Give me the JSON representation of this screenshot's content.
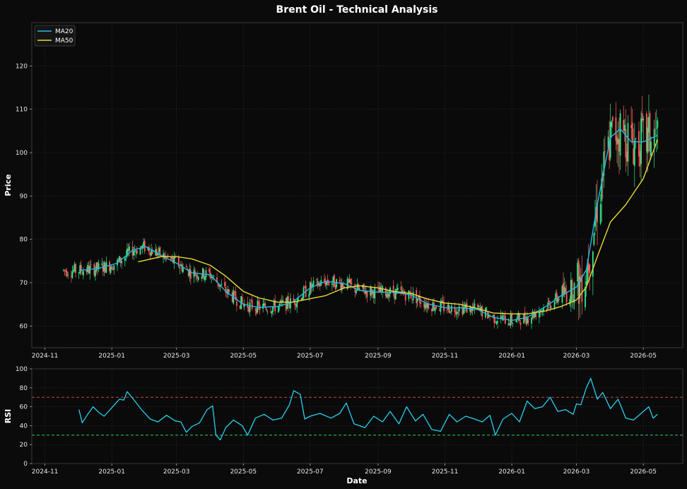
{
  "chart_data": [
    {
      "type": "candlestick",
      "title": "Brent Oil - Technical Analysis",
      "xlabel": "",
      "ylabel": "Price",
      "x_ticks": [
        "2024-11",
        "2025-01",
        "2025-03",
        "2025-05",
        "2025-07",
        "2025-09",
        "2025-11",
        "2026-01",
        "2026-03",
        "2026-05"
      ],
      "y_ticks": [
        60,
        70,
        80,
        90,
        100,
        110,
        120
      ],
      "xlim": [
        "2024-10-20",
        "2026-06-06"
      ],
      "ylim": [
        55,
        130
      ],
      "grid": true,
      "legend_position": "top-left",
      "colors": {
        "up": "#2ee88a",
        "down": "#ff5a5a",
        "ma20": "#29b6e8",
        "ma50": "#e8d83a"
      },
      "series": [
        {
          "name": "MA20",
          "dates": [
            "2024-12-02",
            "2024-12-20",
            "2025-01-06",
            "2025-01-20",
            "2025-02-01",
            "2025-02-15",
            "2025-03-01",
            "2025-03-15",
            "2025-04-01",
            "2025-04-15",
            "2025-05-01",
            "2025-05-15",
            "2025-06-01",
            "2025-06-15",
            "2025-07-01",
            "2025-07-15",
            "2025-08-01",
            "2025-08-15",
            "2025-09-01",
            "2025-09-15",
            "2025-10-01",
            "2025-10-15",
            "2025-11-01",
            "2025-11-15",
            "2025-12-01",
            "2025-12-15",
            "2026-01-01",
            "2026-01-15",
            "2026-02-01",
            "2026-02-15",
            "2026-03-01",
            "2026-03-10",
            "2026-03-20",
            "2026-04-01",
            "2026-04-10",
            "2026-04-20",
            "2026-05-01",
            "2026-05-14"
          ],
          "values": [
            72.8,
            73.3,
            74.5,
            77.5,
            78.3,
            76.3,
            74.5,
            72.3,
            71.8,
            68.0,
            65.0,
            64.3,
            64.5,
            65.5,
            68.8,
            70.3,
            69.8,
            68.2,
            67.8,
            67.8,
            67.2,
            65.2,
            64.2,
            64.2,
            63.8,
            62.0,
            61.3,
            62.0,
            64.5,
            67.0,
            69.0,
            73.0,
            88.0,
            103.5,
            105.5,
            102.5,
            102.5,
            104.0
          ]
        },
        {
          "name": "MA50",
          "dates": [
            "2025-01-25",
            "2025-02-15",
            "2025-03-01",
            "2025-03-15",
            "2025-04-01",
            "2025-04-15",
            "2025-05-01",
            "2025-05-15",
            "2025-06-01",
            "2025-06-15",
            "2025-07-01",
            "2025-07-15",
            "2025-08-01",
            "2025-08-15",
            "2025-09-01",
            "2025-09-15",
            "2025-10-01",
            "2025-10-15",
            "2025-11-01",
            "2025-11-15",
            "2025-12-01",
            "2025-12-15",
            "2026-01-01",
            "2026-01-15",
            "2026-02-01",
            "2026-02-15",
            "2026-03-01",
            "2026-03-10",
            "2026-03-20",
            "2026-04-01",
            "2026-04-15",
            "2026-05-01",
            "2026-05-14"
          ],
          "values": [
            74.8,
            76.0,
            76.0,
            75.5,
            74.0,
            71.5,
            68.0,
            66.5,
            65.5,
            65.5,
            66.3,
            67.0,
            68.8,
            69.3,
            68.8,
            68.0,
            67.5,
            66.3,
            65.3,
            65.0,
            64.0,
            63.0,
            62.8,
            62.8,
            63.5,
            64.5,
            66.0,
            69.0,
            76.0,
            84.0,
            88.0,
            94.0,
            103.0
          ]
        }
      ]
    },
    {
      "type": "line",
      "title": "",
      "xlabel": "Date",
      "ylabel": "RSI",
      "x_ticks": [
        "2024-11",
        "2025-01",
        "2025-03",
        "2025-05",
        "2025-07",
        "2025-09",
        "2025-11",
        "2026-01",
        "2026-03",
        "2026-05"
      ],
      "y_ticks": [
        0,
        20,
        40,
        60,
        80,
        100
      ],
      "xlim": [
        "2024-10-20",
        "2026-06-06"
      ],
      "ylim": [
        0,
        100
      ],
      "grid": true,
      "reference_lines": [
        {
          "value": 70,
          "color": "#e05050"
        },
        {
          "value": 30,
          "color": "#2ee88a"
        }
      ],
      "series": [
        {
          "name": "RSI",
          "color": "#29d0f0",
          "dates": [
            "2024-12-02",
            "2024-12-05",
            "2024-12-10",
            "2024-12-15",
            "2024-12-20",
            "2024-12-25",
            "2025-01-01",
            "2025-01-08",
            "2025-01-12",
            "2025-01-15",
            "2025-01-20",
            "2025-01-28",
            "2025-02-05",
            "2025-02-12",
            "2025-02-20",
            "2025-02-28",
            "2025-03-05",
            "2025-03-10",
            "2025-03-15",
            "2025-03-22",
            "2025-03-29",
            "2025-04-03",
            "2025-04-06",
            "2025-04-10",
            "2025-04-15",
            "2025-04-22",
            "2025-04-30",
            "2025-05-05",
            "2025-05-12",
            "2025-05-20",
            "2025-05-28",
            "2025-06-05",
            "2025-06-12",
            "2025-06-16",
            "2025-06-22",
            "2025-06-26",
            "2025-07-01",
            "2025-07-10",
            "2025-07-20",
            "2025-07-28",
            "2025-08-03",
            "2025-08-10",
            "2025-08-20",
            "2025-08-28",
            "2025-09-05",
            "2025-09-12",
            "2025-09-20",
            "2025-09-27",
            "2025-10-05",
            "2025-10-12",
            "2025-10-20",
            "2025-10-28",
            "2025-11-05",
            "2025-11-12",
            "2025-11-20",
            "2025-11-28",
            "2025-12-05",
            "2025-12-12",
            "2025-12-17",
            "2025-12-24",
            "2026-01-01",
            "2026-01-08",
            "2026-01-15",
            "2026-01-22",
            "2026-01-29",
            "2026-02-05",
            "2026-02-12",
            "2026-02-19",
            "2026-02-26",
            "2026-03-01",
            "2026-03-05",
            "2026-03-10",
            "2026-03-14",
            "2026-03-20",
            "2026-03-25",
            "2026-04-01",
            "2026-04-08",
            "2026-04-15",
            "2026-04-22",
            "2026-04-29",
            "2026-05-06",
            "2026-05-10",
            "2026-05-14"
          ],
          "values": [
            57,
            43,
            52,
            60,
            54,
            50,
            59,
            68,
            67,
            76,
            69,
            57,
            47,
            44,
            51,
            45,
            44,
            33,
            39,
            43,
            57,
            61,
            30,
            25,
            38,
            46,
            40,
            30,
            48,
            52,
            46,
            48,
            62,
            77,
            73,
            47,
            50,
            53,
            48,
            53,
            64,
            42,
            38,
            50,
            44,
            55,
            42,
            60,
            45,
            52,
            36,
            34,
            52,
            44,
            50,
            47,
            44,
            51,
            30,
            47,
            53,
            44,
            66,
            58,
            60,
            70,
            55,
            57,
            52,
            63,
            62,
            80,
            90,
            68,
            75,
            58,
            68,
            48,
            46,
            53,
            60,
            48,
            52
          ]
        }
      ]
    }
  ]
}
